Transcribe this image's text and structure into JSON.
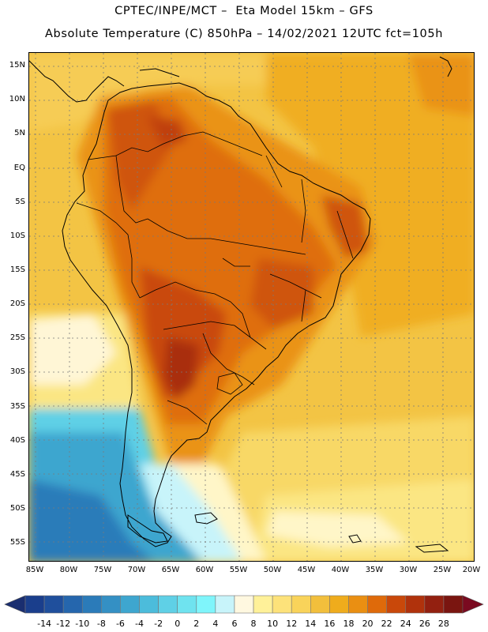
{
  "header": {
    "line1": "CPTEC/INPE/MCT –  Eta Model 15km – GFS",
    "line2": "Absolute Temperature (C) 850hPa – 14/02/2021 12UTC fct=105h"
  },
  "axes": {
    "lat_labels": [
      "15N",
      "10N",
      "5N",
      "EQ",
      "5S",
      "10S",
      "15S",
      "20S",
      "25S",
      "30S",
      "35S",
      "40S",
      "45S",
      "50S",
      "55S"
    ],
    "lon_labels": [
      "85W",
      "80W",
      "75W",
      "70W",
      "65W",
      "60W",
      "55W",
      "50W",
      "45W",
      "40W",
      "35W",
      "30W",
      "25W",
      "20W"
    ]
  },
  "colorbar": {
    "labels": [
      "-14",
      "-12",
      "-10",
      "-8",
      "-6",
      "-4",
      "-2",
      "0",
      "2",
      "4",
      "6",
      "8",
      "10",
      "12",
      "14",
      "16",
      "18",
      "20",
      "22",
      "24",
      "26",
      "28"
    ],
    "colors": [
      "#1a3e8c",
      "#1f4f9c",
      "#2566ad",
      "#2b7bb9",
      "#3490c4",
      "#3ea6cf",
      "#4cbcdb",
      "#5fd0e6",
      "#6fe3ef",
      "#7ff5fb",
      "#c8f4fa",
      "#fff8e0",
      "#fff199",
      "#fde27a",
      "#f9d35a",
      "#f2bf3c",
      "#efac1c",
      "#ea8f12",
      "#df6a0a",
      "#c9480a",
      "#b0320c",
      "#932010",
      "#7a1510"
    ],
    "under_color": "#1a2e70",
    "over_color": "#7a0a20"
  }
}
